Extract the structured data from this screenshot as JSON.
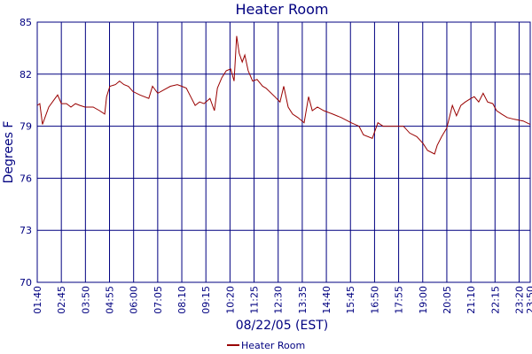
{
  "chart_data": {
    "type": "line",
    "title": "Heater Room",
    "xlabel": "08/22/05 (EST)",
    "ylabel": "Degrees F",
    "x": [
      "01:40",
      "01:47",
      "01:54",
      "02:11",
      "02:28",
      "02:35",
      "02:45",
      "02:59",
      "03:11",
      "03:23",
      "03:35",
      "03:49",
      "04:11",
      "04:28",
      "04:42",
      "04:47",
      "04:56",
      "05:11",
      "05:22",
      "05:34",
      "05:46",
      "05:58",
      "06:17",
      "06:41",
      "06:51",
      "07:05",
      "07:22",
      "07:39",
      "07:58",
      "08:10",
      "08:22",
      "08:34",
      "08:46",
      "08:58",
      "09:10",
      "09:26",
      "09:38",
      "09:46",
      "09:58",
      "10:10",
      "10:22",
      "10:31",
      "10:38",
      "10:45",
      "10:53",
      "11:00",
      "11:09",
      "11:21",
      "11:33",
      "11:48",
      "11:57",
      "12:21",
      "12:35",
      "12:45",
      "12:57",
      "13:09",
      "13:23",
      "13:40",
      "13:52",
      "14:02",
      "14:16",
      "14:33",
      "14:57",
      "15:20",
      "15:47",
      "16:08",
      "16:20",
      "16:44",
      "16:59",
      "17:13",
      "17:44",
      "18:08",
      "18:25",
      "18:44",
      "19:01",
      "19:13",
      "19:32",
      "19:39",
      "19:51",
      "20:05",
      "20:20",
      "20:31",
      "20:43",
      "20:55",
      "21:10",
      "21:19",
      "21:31",
      "21:43",
      "21:55",
      "22:09",
      "22:19",
      "22:33",
      "22:48",
      "23:07",
      "23:31",
      "23:50"
    ],
    "series": [
      {
        "name": "Heater Room",
        "color": "#990000",
        "values": [
          80.2,
          80.3,
          79.1,
          80.1,
          80.6,
          80.8,
          80.3,
          80.3,
          80.1,
          80.3,
          80.2,
          80.1,
          80.1,
          79.9,
          79.7,
          80.7,
          81.3,
          81.4,
          81.6,
          81.4,
          81.3,
          81.0,
          80.8,
          80.6,
          81.3,
          80.9,
          81.1,
          81.3,
          81.4,
          81.3,
          81.2,
          80.7,
          80.2,
          80.4,
          80.3,
          80.6,
          79.9,
          81.2,
          81.8,
          82.2,
          82.3,
          81.6,
          84.2,
          83.2,
          82.7,
          83.1,
          82.2,
          81.6,
          81.7,
          81.3,
          81.2,
          80.7,
          80.4,
          81.3,
          80.1,
          79.7,
          79.5,
          79.2,
          80.7,
          79.9,
          80.1,
          79.9,
          79.7,
          79.5,
          79.2,
          79.0,
          78.5,
          78.3,
          79.2,
          79.0,
          79.0,
          79.0,
          78.6,
          78.4,
          78.0,
          77.6,
          77.4,
          77.9,
          78.4,
          78.9,
          80.2,
          79.6,
          80.2,
          80.4,
          80.6,
          80.7,
          80.4,
          80.9,
          80.4,
          80.3,
          79.9,
          79.7,
          79.5,
          79.4,
          79.3,
          79.1
        ]
      }
    ],
    "xlim": [
      "01:40",
      "23:50"
    ],
    "xticks": [
      "01:40",
      "02:45",
      "03:50",
      "04:55",
      "06:00",
      "07:05",
      "08:10",
      "09:15",
      "10:20",
      "11:25",
      "12:30",
      "13:35",
      "14:40",
      "15:45",
      "16:50",
      "17:55",
      "19:00",
      "20:05",
      "21:10",
      "22:15",
      "23:20",
      "23:50"
    ],
    "ylim": [
      70,
      85
    ],
    "yticks": [
      70,
      73,
      76,
      79,
      82,
      85
    ],
    "grid": true,
    "legend": "bottom"
  }
}
